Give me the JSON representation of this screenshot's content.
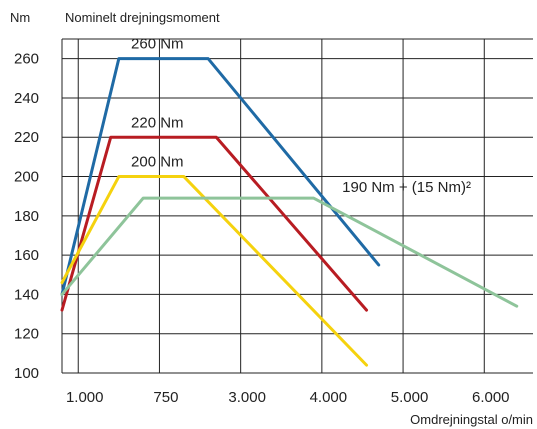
{
  "chart_data": {
    "type": "line",
    "title": "Nominelt drejningsmoment",
    "ylabel": "Nm",
    "xlabel": "Omdrejningstal o/min",
    "y_ticks": [
      "100",
      "120",
      "140",
      "160",
      "180",
      "200",
      "220",
      "240",
      "260"
    ],
    "x_ticks": [
      "1.000",
      "750",
      "3.000",
      "4.000",
      "5.000",
      "6.000"
    ],
    "ylim": [
      100,
      270
    ],
    "xlim": [
      800,
      6600
    ],
    "grid": true,
    "colors": {
      "blue": "#1f6aa5",
      "red": "#b81c22",
      "yellow": "#f5d20e",
      "green": "#8ec49a",
      "axis": "#222222"
    },
    "series": [
      {
        "color": "#1f6aa5",
        "points": [
          [
            800,
            140
          ],
          [
            1500,
            260
          ],
          [
            2600,
            260
          ],
          [
            4700,
            155
          ]
        ]
      },
      {
        "color": "#b81c22",
        "points": [
          [
            800,
            132
          ],
          [
            1400,
            220
          ],
          [
            2700,
            220
          ],
          [
            4550,
            132
          ]
        ]
      },
      {
        "color": "#f5d20e",
        "points": [
          [
            800,
            146
          ],
          [
            1500,
            200
          ],
          [
            2300,
            200
          ],
          [
            4550,
            104
          ]
        ]
      },
      {
        "color": "#8ec49a",
        "points": [
          [
            800,
            140
          ],
          [
            1800,
            189
          ],
          [
            3900,
            189
          ],
          [
            6400,
            134
          ]
        ]
      }
    ],
    "annotations": [
      {
        "text": "260 Nm",
        "x": 1650,
        "y": 262
      },
      {
        "text": "220 Nm",
        "x": 1650,
        "y": 222
      },
      {
        "text": "200 Nm",
        "x": 1650,
        "y": 202
      },
      {
        "text": "190 Nm + (15 Nm)²",
        "x": 4250,
        "y": 189
      }
    ]
  }
}
